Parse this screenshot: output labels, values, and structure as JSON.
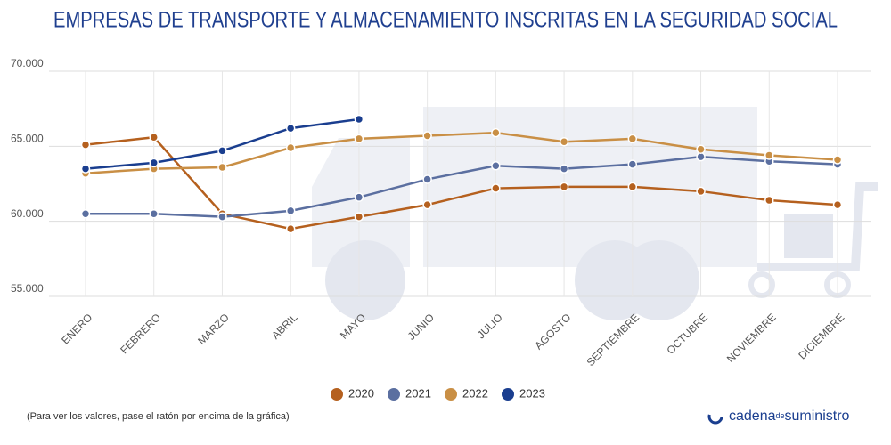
{
  "chart_data": {
    "type": "line",
    "title": "EMPRESAS DE TRANSPORTE Y ALMACENAMIENTO INSCRITAS EN LA SEGURIDAD SOCIAL",
    "categories": [
      "ENERO",
      "FEBRERO",
      "MARZO",
      "ABRIL",
      "MAYO",
      "JUNIO",
      "JULIO",
      "AGOSTO",
      "SEPTIEMBRE",
      "OCTUBRE",
      "NOVIEMBRE",
      "DICIEMBRE"
    ],
    "series": [
      {
        "name": "2020",
        "color": "#b5601e",
        "values": [
          65100,
          65600,
          60500,
          59500,
          60300,
          61100,
          62200,
          62300,
          62300,
          62000,
          61400,
          61100
        ]
      },
      {
        "name": "2021",
        "color": "#5b6fa0",
        "values": [
          60500,
          60500,
          60300,
          60700,
          61600,
          62800,
          63700,
          63500,
          63800,
          64300,
          64000,
          63800
        ]
      },
      {
        "name": "2022",
        "color": "#c98f45",
        "values": [
          63200,
          63500,
          63600,
          64900,
          65500,
          65700,
          65900,
          65300,
          65500,
          64800,
          64400,
          64100
        ]
      },
      {
        "name": "2023",
        "color": "#1a3e8f",
        "values": [
          63500,
          63900,
          64700,
          66200,
          66800,
          null,
          null,
          null,
          null,
          null,
          null,
          null
        ]
      }
    ],
    "ylim": [
      55000,
      70000
    ],
    "yticks": [
      {
        "value": 55000,
        "label": "55.000"
      },
      {
        "value": 60000,
        "label": "60.000"
      },
      {
        "value": 65000,
        "label": "65.000"
      },
      {
        "value": 70000,
        "label": "70.000"
      }
    ],
    "grid": true,
    "legend": "bottom",
    "note": "(Para ver los valores, pase el ratón por encima de la gráfica)"
  },
  "logo": [
    "cadena",
    "de",
    "suministro"
  ]
}
